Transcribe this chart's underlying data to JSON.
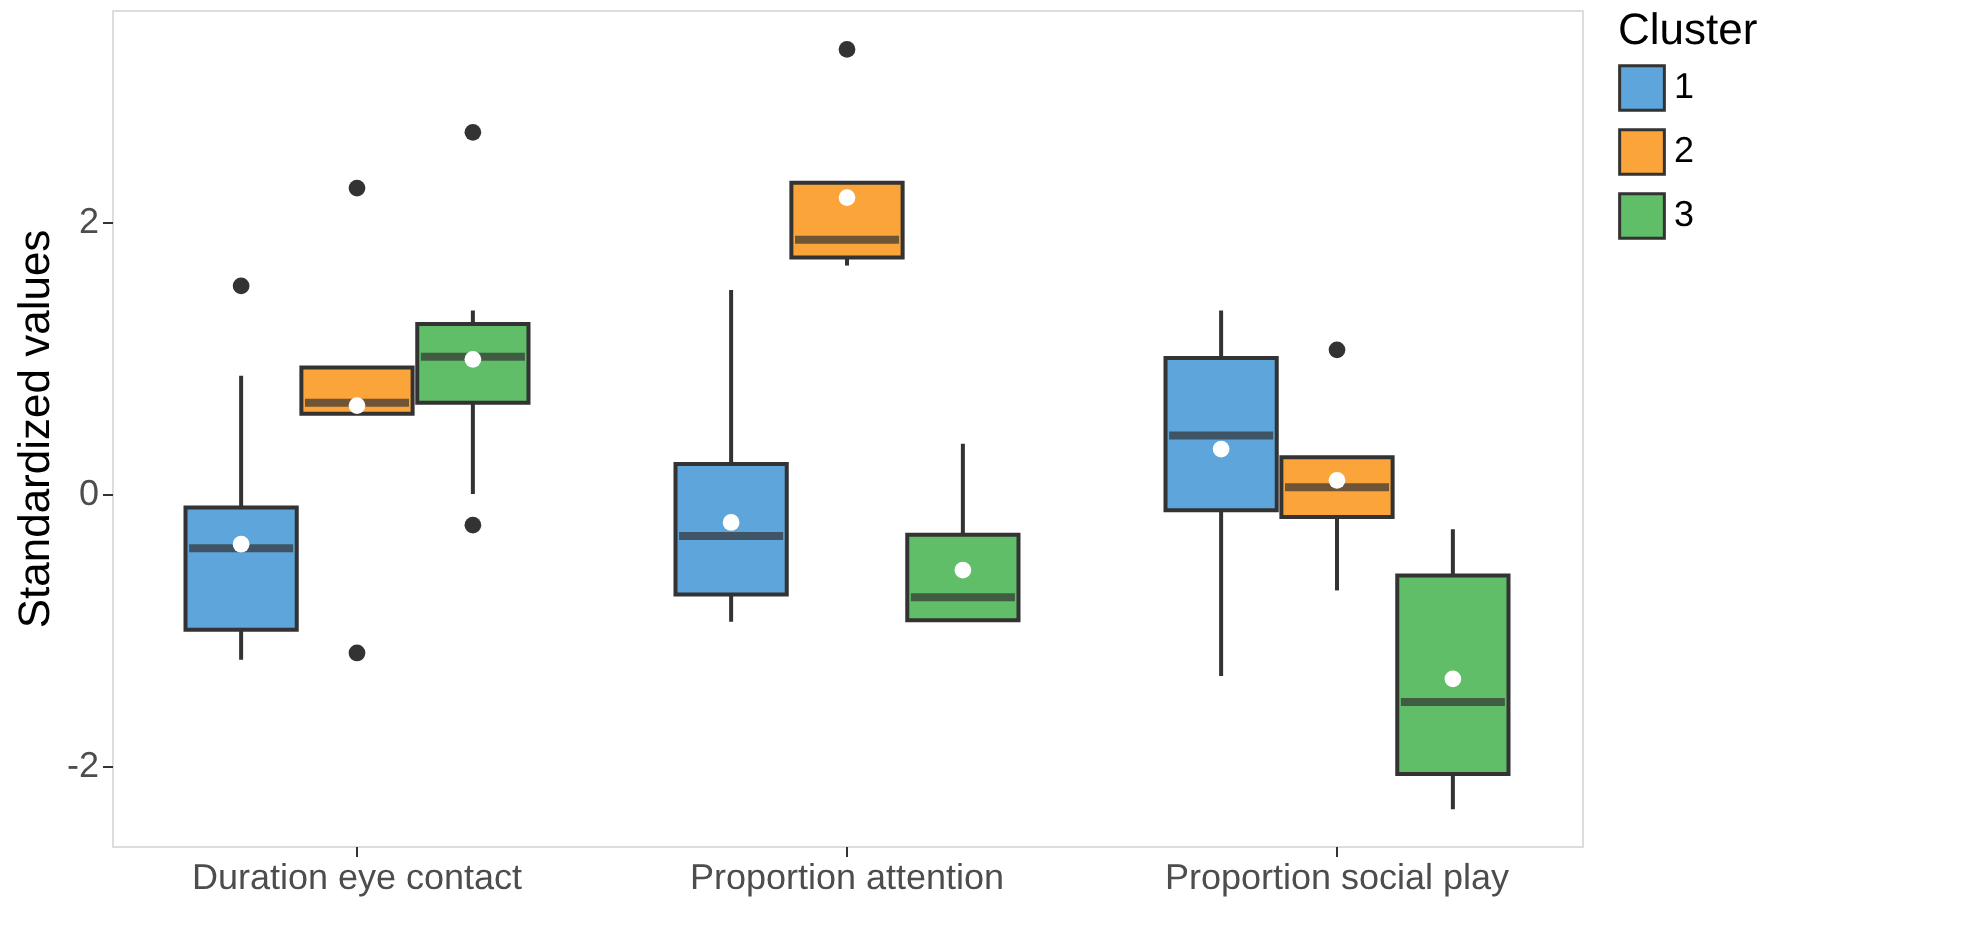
{
  "chart_data": {
    "type": "box",
    "ylabel": "Standardized values",
    "legend_title": "Cluster",
    "legend": "right",
    "grid": false,
    "categories": [
      "Duration eye contact",
      "Proportion attention",
      "Proportion social play"
    ],
    "ylim": [
      -2.59,
      3.56
    ],
    "yticks": [
      -2,
      0,
      2
    ],
    "series": [
      {
        "name": "1",
        "color": "#5da5da",
        "boxes": [
          {
            "low": -1.22,
            "q1": -1.0,
            "median": -0.4,
            "q3": -0.1,
            "high": 0.87,
            "mean": -0.37,
            "outliers": [
              1.53
            ]
          },
          {
            "low": -0.94,
            "q1": -0.74,
            "median": -0.31,
            "q3": 0.22,
            "high": 1.5,
            "mean": -0.21
          },
          {
            "low": -1.34,
            "q1": -0.12,
            "median": 0.43,
            "q3": 1.0,
            "high": 1.35,
            "mean": 0.33
          }
        ]
      },
      {
        "name": "2",
        "color": "#faa43a",
        "boxes": [
          {
            "low": 0.59,
            "q1": 0.59,
            "median": 0.67,
            "q3": 0.93,
            "high": 0.93,
            "mean": 0.65,
            "outliers": [
              2.25,
              -1.17
            ]
          },
          {
            "low": 1.68,
            "q1": 1.74,
            "median": 1.87,
            "q3": 2.29,
            "high": 2.29,
            "mean": 2.18,
            "outliers": [
              3.27
            ]
          },
          {
            "low": -0.71,
            "q1": -0.17,
            "median": 0.05,
            "q3": 0.27,
            "high": 0.27,
            "mean": 0.1,
            "outliers": [
              1.06
            ]
          }
        ]
      },
      {
        "name": "3",
        "color": "#60bd68",
        "boxes": [
          {
            "low": 0.0,
            "q1": 0.67,
            "median": 1.01,
            "q3": 1.25,
            "high": 1.35,
            "mean": 0.99,
            "outliers": [
              2.66,
              -0.23
            ]
          },
          {
            "low": -0.93,
            "q1": -0.93,
            "median": -0.76,
            "q3": -0.3,
            "high": 0.37,
            "mean": -0.56
          },
          {
            "low": -2.32,
            "q1": -2.06,
            "median": -1.53,
            "q3": -0.6,
            "high": -0.26,
            "mean": -1.36
          }
        ]
      }
    ]
  }
}
